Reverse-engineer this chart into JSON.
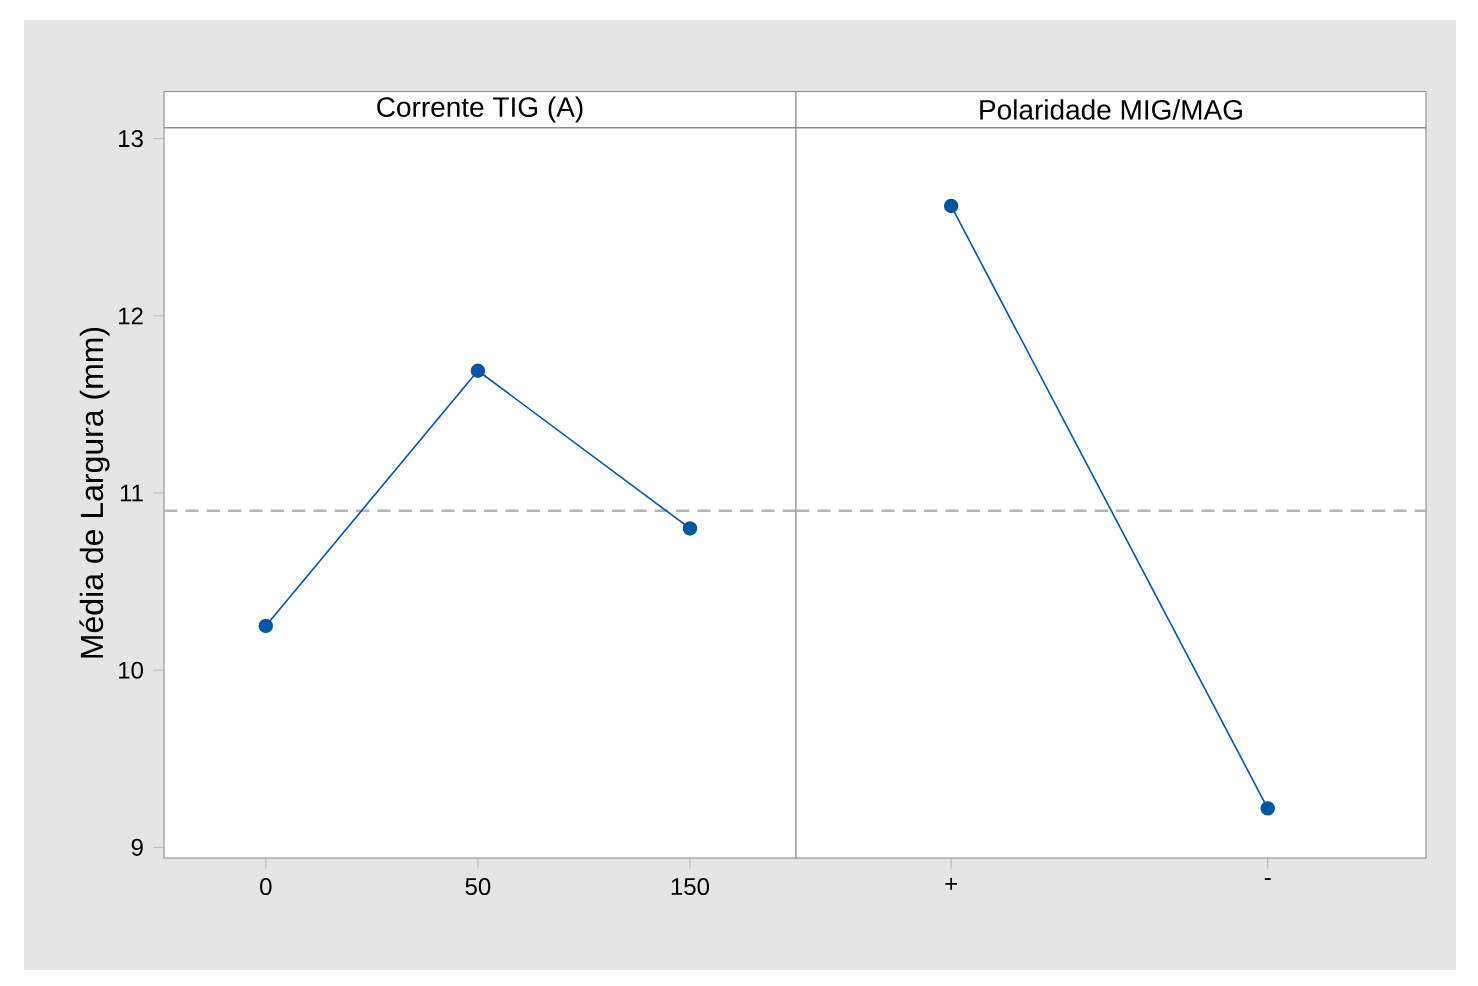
{
  "chart_data": [
    {
      "type": "line",
      "title": "Corrente TIG (A)",
      "ylabel": "Média de Largura (mm)",
      "categories": [
        "0",
        "50",
        "150"
      ],
      "series": [
        {
          "color": "#0055a5",
          "values": [
            10.25,
            11.69,
            10.8
          ]
        }
      ],
      "ylim": [
        8.94,
        13.06
      ],
      "yticks": [
        9,
        10,
        11,
        12,
        13
      ],
      "marker": "circle",
      "line_style": "solid",
      "ref_lines": [
        {
          "axis": "y",
          "value": 10.9,
          "color": "#b4b4b4",
          "line_style": "dashed"
        }
      ]
    },
    {
      "type": "line",
      "title": "Polaridade MIG/MAG",
      "categories": [
        "+",
        "-"
      ],
      "series": [
        {
          "color": "#0055a5",
          "values": [
            12.62,
            9.22
          ]
        }
      ],
      "ylim": [
        8.94,
        13.06
      ],
      "tick_labels": "x",
      "marker": "circle",
      "line_style": "solid",
      "ref_lines": [
        {
          "axis": "y",
          "value": 10.9,
          "color": "#b4b4b4",
          "line_style": "dashed"
        }
      ]
    }
  ]
}
